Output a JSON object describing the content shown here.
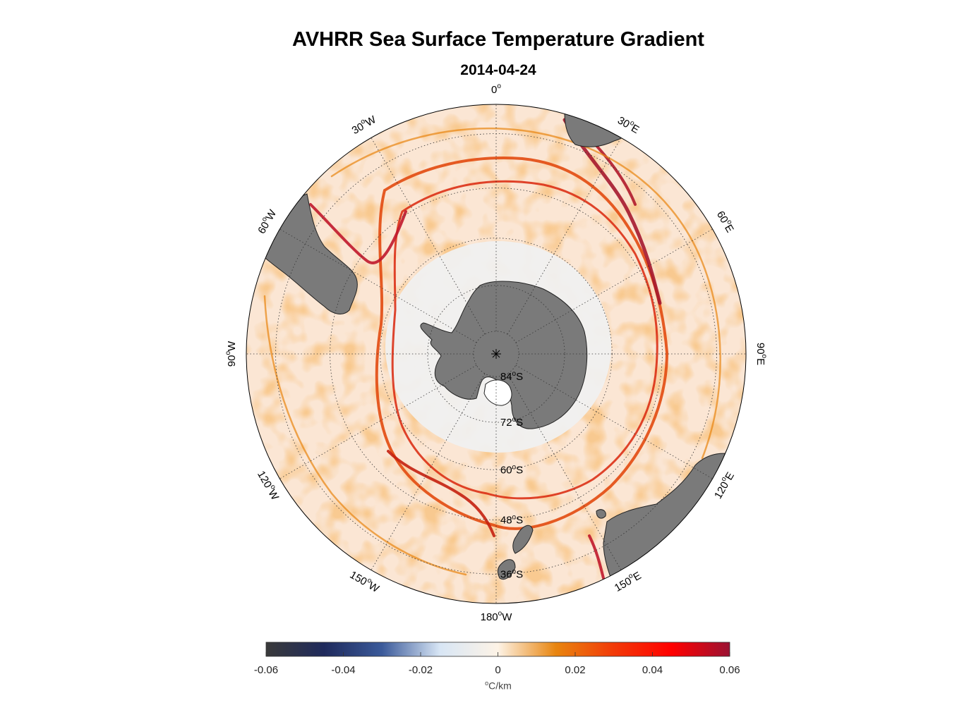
{
  "title": "AVHRR Sea Surface Temperature Gradient",
  "subtitle": "2014-04-24",
  "map": {
    "projection": "south-polar-stereographic",
    "longitude_labels": [
      {
        "lon": 0,
        "text": "0",
        "sup": "o",
        "suffix": ""
      },
      {
        "lon": 30,
        "text": "30",
        "sup": "o",
        "suffix": "E"
      },
      {
        "lon": 60,
        "text": "60",
        "sup": "o",
        "suffix": "E"
      },
      {
        "lon": 90,
        "text": "90",
        "sup": "o",
        "suffix": "E"
      },
      {
        "lon": 120,
        "text": "120",
        "sup": "o",
        "suffix": "E"
      },
      {
        "lon": 150,
        "text": "150",
        "sup": "o",
        "suffix": "E"
      },
      {
        "lon": 180,
        "text": "180",
        "sup": "o",
        "suffix": "W"
      },
      {
        "lon": -150,
        "text": "150",
        "sup": "o",
        "suffix": "W"
      },
      {
        "lon": -120,
        "text": "120",
        "sup": "o",
        "suffix": "W"
      },
      {
        "lon": -90,
        "text": "90",
        "sup": "o",
        "suffix": "W"
      },
      {
        "lon": -60,
        "text": "60",
        "sup": "o",
        "suffix": "W"
      },
      {
        "lon": -30,
        "text": "30",
        "sup": "o",
        "suffix": "W"
      }
    ],
    "latitude_labels": [
      {
        "lat": 84,
        "text": "84",
        "sup": "o",
        "suffix": "S"
      },
      {
        "lat": 72,
        "text": "72",
        "sup": "o",
        "suffix": "S"
      },
      {
        "lat": 60,
        "text": "60",
        "sup": "o",
        "suffix": "S"
      },
      {
        "lat": 48,
        "text": "48",
        "sup": "o",
        "suffix": "S"
      },
      {
        "lat": 36,
        "text": "36",
        "sup": "o",
        "suffix": "S"
      }
    ],
    "land_color": "#7a7a7a",
    "ice_color": "#f0f0f0",
    "ocean_base_color": "#fbe6d4"
  },
  "colorbar": {
    "min": -0.06,
    "max": 0.06,
    "ticks": [
      "-0.06",
      "-0.04",
      "-0.02",
      "0",
      "0.02",
      "0.04",
      "0.06"
    ],
    "unit_sup": "o",
    "unit": "C/km",
    "colors": [
      "#3a3a3a",
      "#1f2a5c",
      "#3b5a9a",
      "#d8e6f5",
      "#fdf3e6",
      "#e8850f",
      "#f23a08",
      "#ff0000",
      "#9a1232"
    ]
  }
}
